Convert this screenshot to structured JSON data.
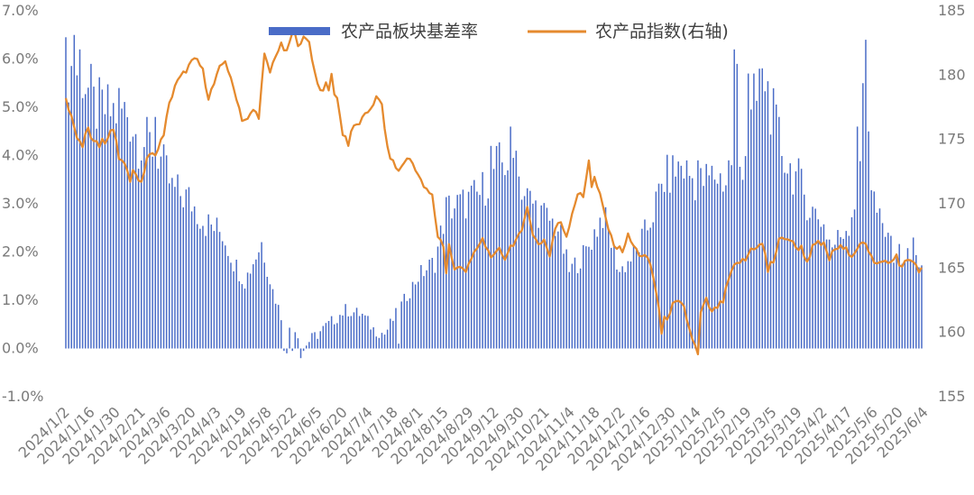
{
  "chart_data": {
    "type": "bar+line",
    "legend": [
      {
        "label": "农产品板块基差率",
        "color": "#4a6cc7",
        "kind": "bar"
      },
      {
        "label": "农产品指数(右轴)",
        "color": "#e58a2e",
        "kind": "line"
      }
    ],
    "legend_placement": "top-center",
    "grid": false,
    "y_left": {
      "min": -1.0,
      "max": 7.0,
      "step": 1.0,
      "ticks": [
        "-1.0%",
        "0.0%",
        "1.0%",
        "2.0%",
        "3.0%",
        "4.0%",
        "5.0%",
        "6.0%",
        "7.0%"
      ]
    },
    "y_right": {
      "min": 155,
      "max": 185,
      "step": 5,
      "ticks": [
        "155",
        "160",
        "165",
        "170",
        "175",
        "180",
        "185"
      ]
    },
    "x_tick_labels": [
      "2024/1/2",
      "2024/1/16",
      "2024/1/30",
      "2024/2/21",
      "2024/3/6",
      "2024/3/20",
      "2024/4/3",
      "2024/4/19",
      "2024/5/8",
      "2024/5/22",
      "2024/6/5",
      "2024/6/20",
      "2024/7/4",
      "2024/7/18",
      "2024/8/1",
      "2024/8/15",
      "2024/8/29",
      "2024/9/12",
      "2024/9/30",
      "2024/10/21",
      "2024/11/4",
      "2024/11/18",
      "2024/12/2",
      "2024/12/16",
      "2024/12/30",
      "2025/1/14",
      "2025/2/5",
      "2025/2/19",
      "2025/3/5",
      "2025/3/19",
      "2025/4/2",
      "2025/4/17",
      "2025/5/6",
      "2025/5/20",
      "2025/6/4"
    ],
    "series": [
      {
        "name": "农产品板块基差率",
        "type": "bar",
        "unit": "%",
        "anchors": [
          [
            0,
            5.8
          ],
          [
            6,
            5.7
          ],
          [
            10,
            5.0
          ],
          [
            16,
            4.9
          ],
          [
            22,
            4.9
          ],
          [
            26,
            4.3
          ],
          [
            32,
            4.2
          ],
          [
            38,
            3.3
          ],
          [
            44,
            3.1
          ],
          [
            50,
            2.6
          ],
          [
            56,
            2.4
          ],
          [
            60,
            1.8
          ],
          [
            64,
            1.4
          ],
          [
            70,
            2.2
          ],
          [
            74,
            1.2
          ],
          [
            78,
            0.5
          ],
          [
            82,
            0.4
          ],
          [
            86,
            0.1
          ],
          [
            90,
            0.3
          ],
          [
            96,
            0.6
          ],
          [
            100,
            0.8
          ],
          [
            106,
            0.7
          ],
          [
            110,
            0.4
          ],
          [
            114,
            0.3
          ],
          [
            120,
            0.9
          ],
          [
            126,
            1.5
          ],
          [
            132,
            1.8
          ],
          [
            136,
            2.9
          ],
          [
            142,
            3.0
          ],
          [
            148,
            3.2
          ],
          [
            154,
            3.8
          ],
          [
            160,
            3.9
          ],
          [
            164,
            3.2
          ],
          [
            170,
            2.8
          ],
          [
            176,
            2.5
          ],
          [
            180,
            1.6
          ],
          [
            186,
            2.0
          ],
          [
            192,
            2.8
          ],
          [
            198,
            1.6
          ],
          [
            204,
            2.0
          ],
          [
            208,
            2.5
          ],
          [
            214,
            3.5
          ],
          [
            220,
            3.8
          ],
          [
            226,
            3.4
          ],
          [
            232,
            3.6
          ],
          [
            238,
            3.4
          ],
          [
            242,
            3.9
          ],
          [
            246,
            4.9
          ],
          [
            250,
            5.6
          ],
          [
            254,
            4.5
          ],
          [
            258,
            3.8
          ],
          [
            262,
            3.5
          ],
          [
            266,
            2.9
          ],
          [
            270,
            2.7
          ],
          [
            274,
            2.1
          ],
          [
            280,
            2.6
          ],
          [
            286,
            4.0
          ],
          [
            290,
            2.8
          ],
          [
            294,
            2.1
          ],
          [
            300,
            1.9
          ],
          [
            306,
            1.8
          ]
        ],
        "spikes": [
          [
            3,
            6.5
          ],
          [
            5,
            6.2
          ],
          [
            9,
            5.9
          ],
          [
            19,
            5.4
          ],
          [
            32,
            4.8
          ],
          [
            119,
            0.1
          ],
          [
            152,
            4.2
          ],
          [
            159,
            4.6
          ],
          [
            161,
            4.1
          ],
          [
            226,
            3.9
          ],
          [
            237,
            3.9
          ],
          [
            238,
            3.8
          ],
          [
            239,
            6.2
          ],
          [
            240,
            5.9
          ],
          [
            244,
            5.7
          ],
          [
            246,
            5.7
          ],
          [
            248,
            5.8
          ],
          [
            255,
            4.8
          ],
          [
            283,
            4.6
          ],
          [
            285,
            5.5
          ],
          [
            286,
            6.4
          ],
          [
            287,
            4.5
          ],
          [
            294,
            2.4
          ],
          [
            303,
            2.3
          ]
        ],
        "negatives": [
          [
            78,
            -0.05
          ],
          [
            79,
            -0.1
          ],
          [
            81,
            -0.05
          ],
          [
            84,
            -0.2
          ],
          [
            85,
            -0.05
          ]
        ]
      },
      {
        "name": "农产品指数(右轴)",
        "type": "line",
        "axis": "right",
        "anchors": [
          [
            0,
            178
          ],
          [
            2,
            177
          ],
          [
            4,
            174.9
          ],
          [
            6,
            175
          ],
          [
            8,
            175.7
          ],
          [
            10,
            174.8
          ],
          [
            12,
            175.4
          ],
          [
            14,
            174.7
          ],
          [
            16,
            175.5
          ],
          [
            17,
            175.8
          ],
          [
            19,
            173.6
          ],
          [
            21,
            172.9
          ],
          [
            23,
            172.6
          ],
          [
            25,
            172.4
          ],
          [
            27,
            171.5
          ],
          [
            29,
            173.6
          ],
          [
            31,
            173.8
          ],
          [
            33,
            174.2
          ],
          [
            35,
            175.5
          ],
          [
            37,
            177.7
          ],
          [
            39,
            179.2
          ],
          [
            41,
            179.8
          ],
          [
            43,
            180.4
          ],
          [
            45,
            181
          ],
          [
            47,
            181.2
          ],
          [
            49,
            180.3
          ],
          [
            51,
            178.3
          ],
          [
            53,
            179.3
          ],
          [
            55,
            180.5
          ],
          [
            57,
            181.2
          ],
          [
            59,
            179.6
          ],
          [
            61,
            178.3
          ],
          [
            63,
            176.6
          ],
          [
            65,
            176.5
          ],
          [
            67,
            177.3
          ],
          [
            69,
            176.8
          ],
          [
            71,
            181.5
          ],
          [
            73,
            180.2
          ],
          [
            75,
            181.6
          ],
          [
            77,
            182.3
          ],
          [
            79,
            181.7
          ],
          [
            81,
            183.5
          ],
          [
            83,
            182.5
          ],
          [
            85,
            182.8
          ],
          [
            87,
            182.6
          ],
          [
            89,
            180.2
          ],
          [
            91,
            178.8
          ],
          [
            93,
            179.2
          ],
          [
            95,
            178.3
          ],
          [
            97,
            178.4
          ],
          [
            99,
            175.3
          ],
          [
            101,
            175.5
          ],
          [
            103,
            175.9
          ],
          [
            105,
            176.3
          ],
          [
            107,
            176.8
          ],
          [
            109,
            177.5
          ],
          [
            111,
            178.2
          ],
          [
            113,
            177.7
          ],
          [
            115,
            174.2
          ],
          [
            117,
            173.2
          ],
          [
            119,
            172.5
          ],
          [
            121,
            173.3
          ],
          [
            123,
            173.5
          ],
          [
            125,
            172.8
          ],
          [
            127,
            171.7
          ],
          [
            129,
            171
          ],
          [
            131,
            170.6
          ],
          [
            133,
            167.5
          ],
          [
            135,
            166.8
          ],
          [
            137,
            166.8
          ],
          [
            139,
            164.8
          ],
          [
            141,
            165.1
          ],
          [
            143,
            165.2
          ],
          [
            145,
            165.6
          ],
          [
            147,
            166.5
          ],
          [
            149,
            167.2
          ],
          [
            151,
            166.3
          ],
          [
            153,
            165.8
          ],
          [
            155,
            166.4
          ],
          [
            157,
            165.8
          ],
          [
            159,
            166.7
          ],
          [
            161,
            167.2
          ],
          [
            163,
            167.7
          ],
          [
            165,
            170
          ],
          [
            167,
            167.5
          ],
          [
            169,
            166.9
          ],
          [
            171,
            167.2
          ],
          [
            173,
            166.1
          ],
          [
            175,
            168.1
          ],
          [
            177,
            168.6
          ],
          [
            179,
            167.5
          ],
          [
            181,
            169.3
          ],
          [
            183,
            170.8
          ],
          [
            185,
            170.5
          ],
          [
            187,
            173.5
          ],
          [
            189,
            172
          ],
          [
            191,
            170.6
          ],
          [
            193,
            168.9
          ],
          [
            195,
            167.3
          ],
          [
            197,
            166.6
          ],
          [
            199,
            166.4
          ],
          [
            201,
            167.5
          ],
          [
            203,
            166.7
          ],
          [
            205,
            166.1
          ],
          [
            207,
            165.9
          ],
          [
            209,
            165.3
          ],
          [
            211,
            163.2
          ],
          [
            213,
            160.8
          ],
          [
            215,
            161.2
          ],
          [
            217,
            162.1
          ],
          [
            219,
            162.3
          ],
          [
            221,
            161.9
          ],
          [
            223,
            160.2
          ],
          [
            225,
            158.9
          ],
          [
            227,
            161.5
          ],
          [
            229,
            162.5
          ],
          [
            231,
            161.5
          ],
          [
            233,
            162
          ],
          [
            235,
            162.4
          ],
          [
            237,
            164.1
          ],
          [
            239,
            165.1
          ],
          [
            241,
            165.5
          ],
          [
            243,
            165.6
          ],
          [
            245,
            166.5
          ],
          [
            247,
            166.7
          ],
          [
            249,
            166.8
          ],
          [
            251,
            165.6
          ],
          [
            253,
            165.5
          ],
          [
            255,
            167.1
          ],
          [
            257,
            167.4
          ],
          [
            259,
            167.2
          ],
          [
            261,
            166.6
          ],
          [
            263,
            166.6
          ],
          [
            265,
            165.5
          ],
          [
            267,
            166.6
          ],
          [
            269,
            166.9
          ],
          [
            271,
            166.8
          ],
          [
            273,
            165.7
          ],
          [
            275,
            166.5
          ],
          [
            277,
            166.6
          ],
          [
            279,
            166.4
          ],
          [
            281,
            166.1
          ],
          [
            283,
            166.4
          ],
          [
            285,
            167.1
          ],
          [
            287,
            166.2
          ],
          [
            289,
            165.4
          ],
          [
            291,
            165.6
          ],
          [
            293,
            165.7
          ],
          [
            295,
            165.4
          ],
          [
            297,
            165.9
          ],
          [
            299,
            165.3
          ],
          [
            301,
            165.6
          ],
          [
            303,
            165.5
          ],
          [
            305,
            164.9
          ],
          [
            306,
            164.9
          ]
        ],
        "spikes": [
          [
            6,
            174.4
          ],
          [
            12,
            174.4
          ],
          [
            23,
            171.7
          ],
          [
            69,
            176.6
          ],
          [
            81,
            183.3
          ],
          [
            95,
            180.1
          ],
          [
            101,
            174.5
          ],
          [
            136,
            164.6
          ],
          [
            143,
            164.7
          ],
          [
            173,
            165.9
          ],
          [
            188,
            171.3
          ],
          [
            213,
            159.9
          ],
          [
            226,
            158.3
          ],
          [
            251,
            164.7
          ],
          [
            262,
            166.4
          ],
          [
            283,
            166.5
          ],
          [
            298,
            165.2
          ]
        ]
      }
    ]
  }
}
